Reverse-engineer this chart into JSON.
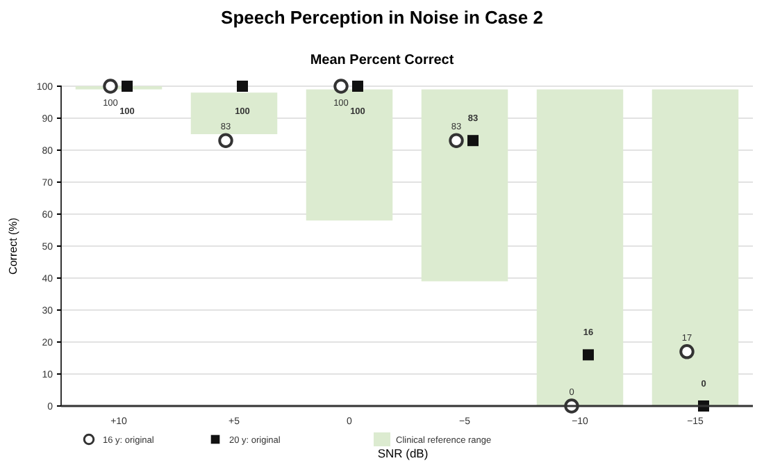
{
  "chart_data": {
    "type": "scatter",
    "title": "Speech Perception in Noise in Case 2",
    "subtitle": "Mean Percent Correct",
    "xlabel": "SNR (dB)",
    "ylabel": "Correct (%)",
    "categories": [
      "+10",
      "+5",
      "0",
      "−5",
      "−10",
      "−15"
    ],
    "series": [
      {
        "name": "16 y: original",
        "marker": "circle",
        "color": "#333333",
        "values": [
          100,
          83,
          100,
          83,
          0,
          17
        ],
        "value_labels": [
          "100",
          "83",
          "100",
          "83",
          "0",
          "17"
        ]
      },
      {
        "name": "20 y: original",
        "marker": "square",
        "color": "#111111",
        "values": [
          100,
          100,
          100,
          83,
          16,
          0
        ],
        "value_labels": [
          "100",
          "100",
          "100",
          "83",
          "16",
          "0"
        ]
      },
      {
        "name": "Clinical reference range",
        "type": "bar",
        "color": "#dcebd0",
        "base": [
          99,
          85,
          58,
          39,
          0,
          0
        ],
        "values": [
          1,
          13,
          41,
          60,
          99,
          99
        ]
      }
    ],
    "ylim": [
      0,
      100
    ],
    "yticks": [
      0,
      10,
      20,
      30,
      40,
      50,
      60,
      70,
      80,
      90,
      100
    ],
    "grid": "y",
    "legend": "bottom"
  }
}
